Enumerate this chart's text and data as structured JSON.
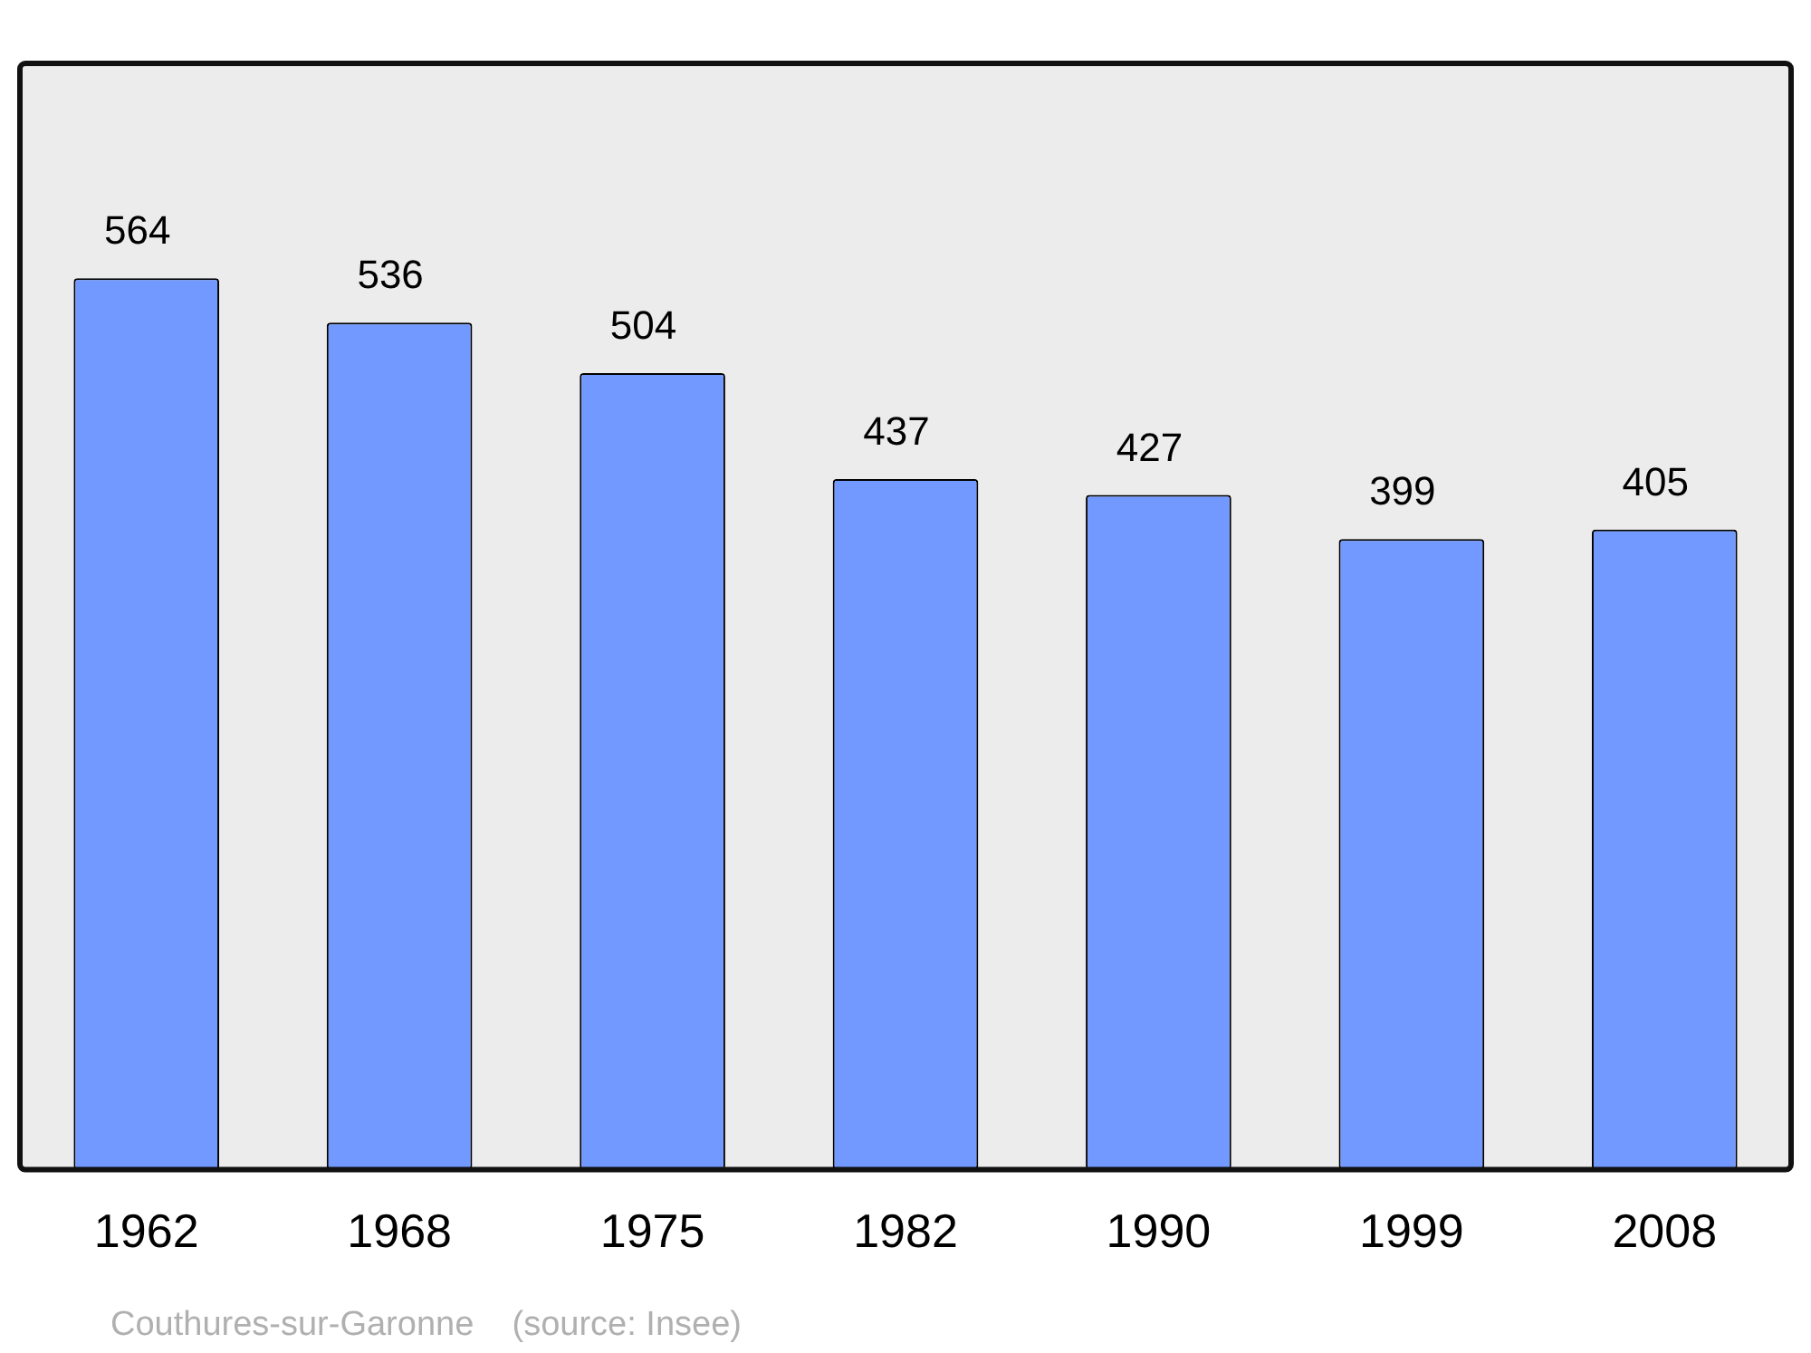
{
  "chart_data": {
    "type": "bar",
    "categories": [
      "1962",
      "1968",
      "1975",
      "1982",
      "1990",
      "1999",
      "2008"
    ],
    "values": [
      564,
      536,
      504,
      437,
      427,
      399,
      405
    ],
    "color": "#7299ff",
    "data_labels": true,
    "annotations": [
      "Couthures-sur-Garonne    (source: Insee)"
    ]
  }
}
